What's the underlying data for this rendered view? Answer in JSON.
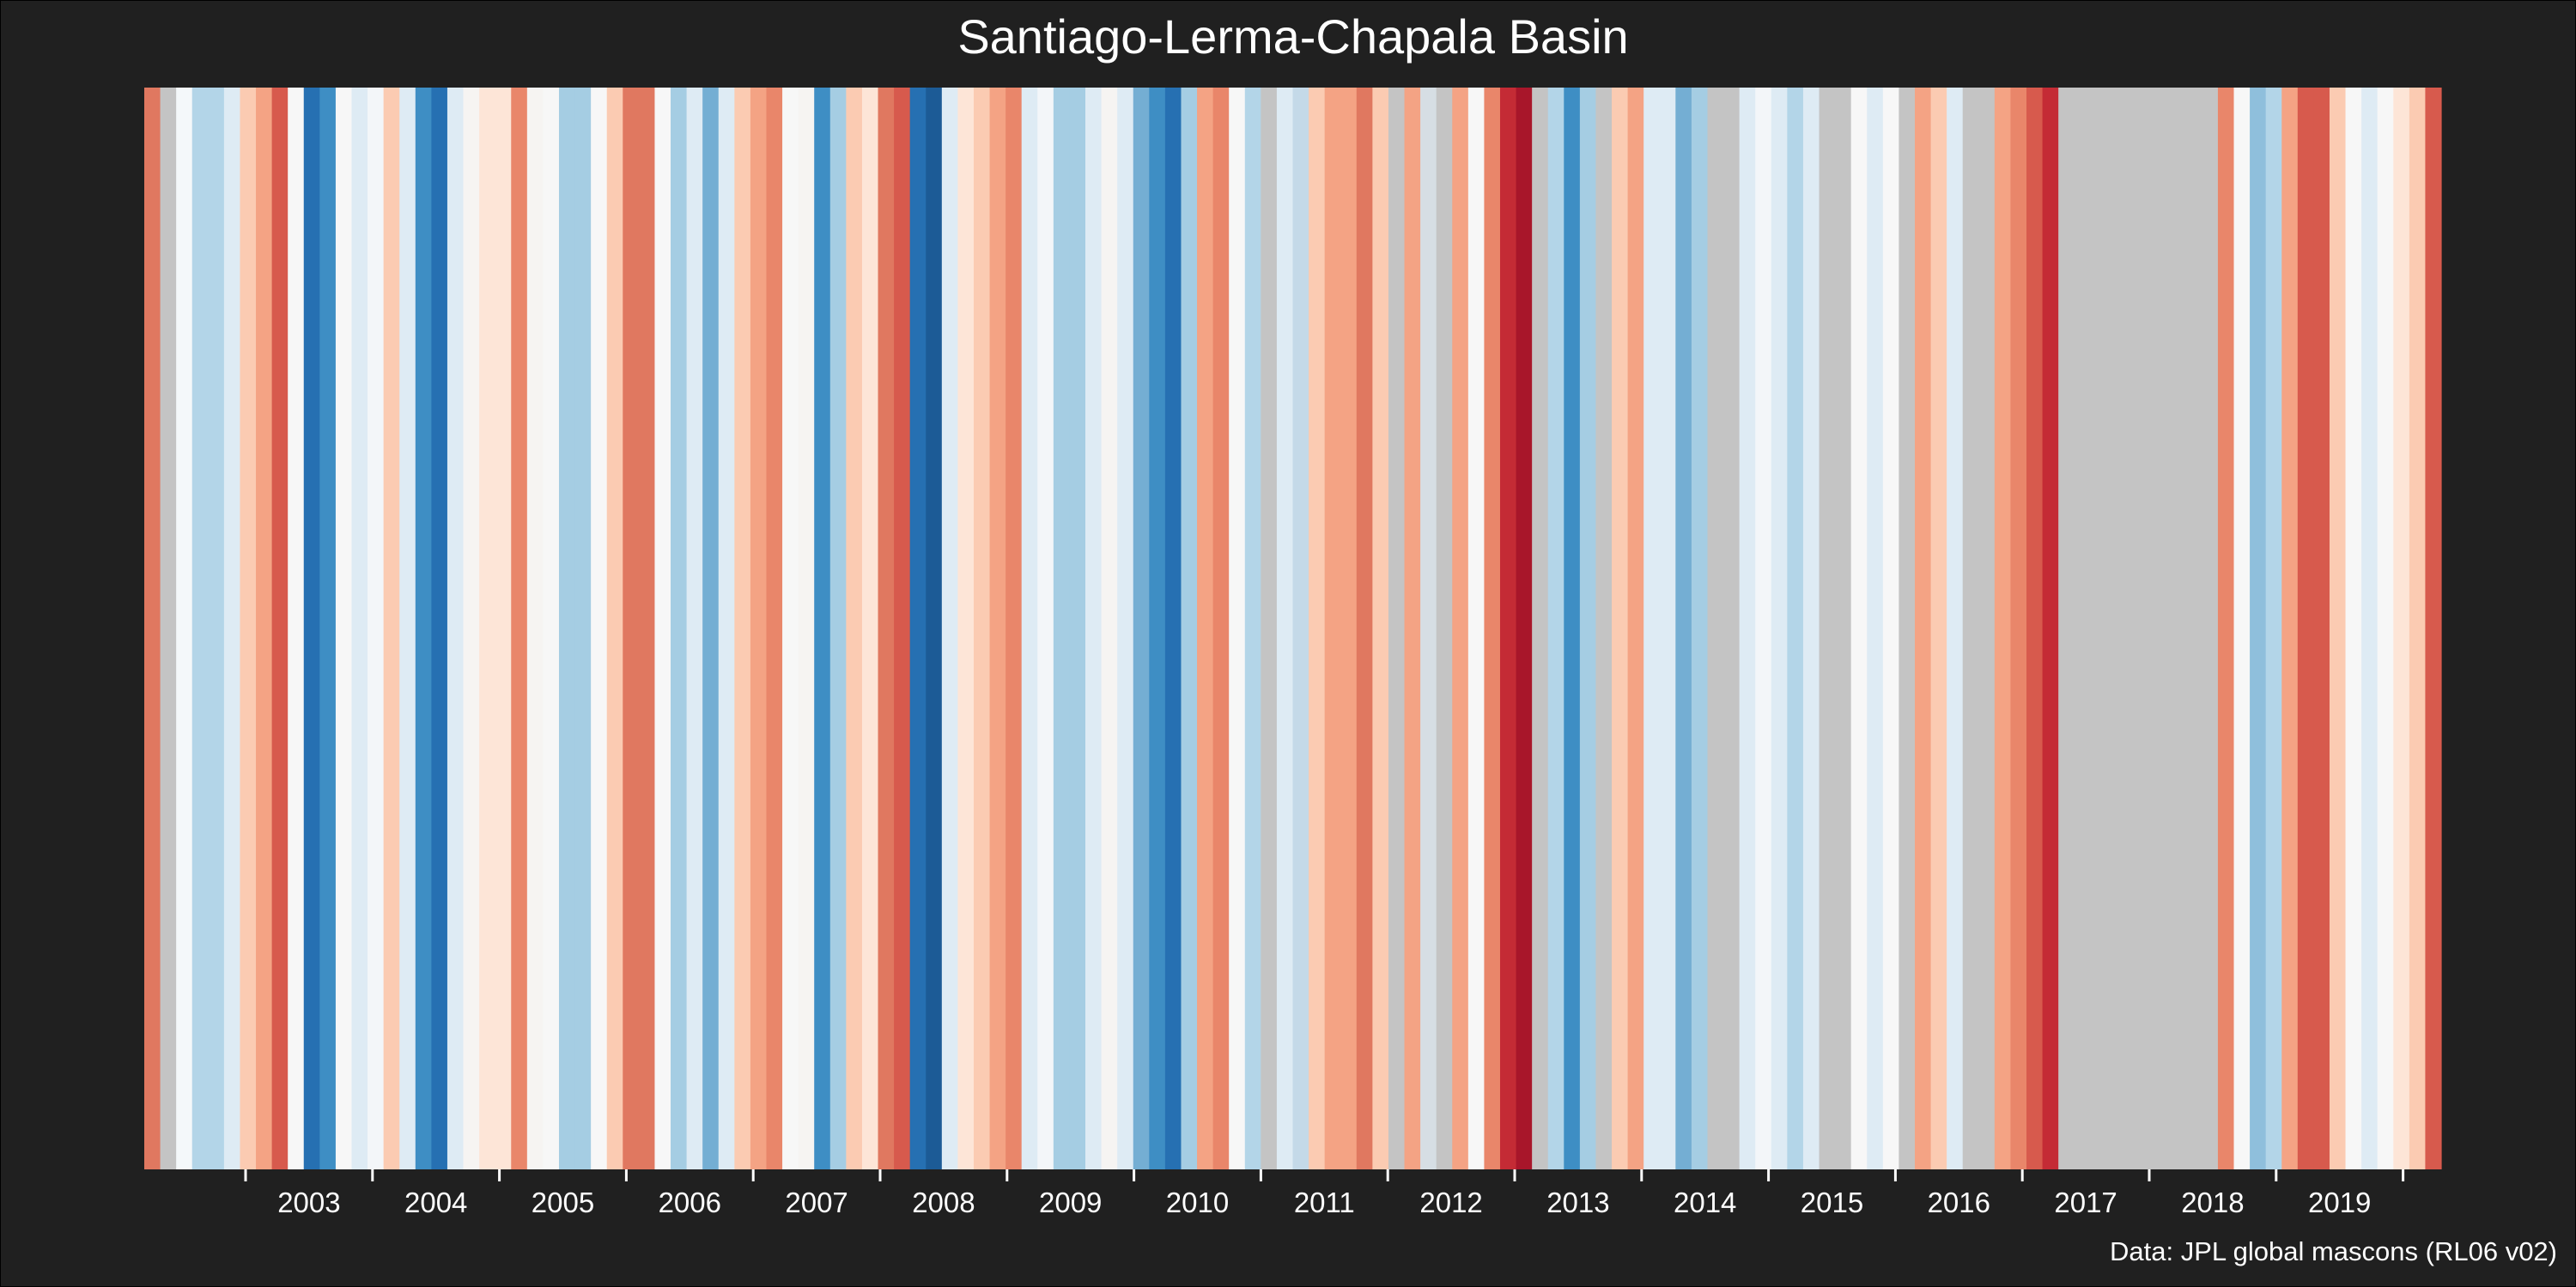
{
  "chart_data": {
    "type": "heatmap",
    "title": "Santiago-Lerma-Chapala Basin",
    "caption": "Data: JPL global mascons (RL06 v02)",
    "x_tick_labels": [
      "2003",
      "2004",
      "2005",
      "2006",
      "2007",
      "2008",
      "2009",
      "2010",
      "2011",
      "2012",
      "2013",
      "2014",
      "2015",
      "2016",
      "2017",
      "2018",
      "2019"
    ],
    "stripes": [
      "#e07860",
      "#c4c4c4",
      "#f4f8fa",
      "#b3d5e8",
      "#b3d5e8",
      "#deebf4",
      "#fbcbb2",
      "#f4a384",
      "#d75a4d",
      "#f7f7f7",
      "#2670b2",
      "#3e8ec4",
      "#f7f7f7",
      "#deebf4",
      "#f3f6f9",
      "#fbcbb2",
      "#deebf4",
      "#3e8ec4",
      "#2670b2",
      "#deebf4",
      "#f6f4f2",
      "#fde5d7",
      "#fde5d7",
      "#e9866a",
      "#f6f4f2",
      "#f7f7f7",
      "#a5cde3",
      "#a5cde3",
      "#f7f7f7",
      "#fbcbb2",
      "#e07860",
      "#e07860",
      "#f7f7f7",
      "#a5cde3",
      "#deebf4",
      "#74aed3",
      "#deebf4",
      "#fbcbb2",
      "#f4a384",
      "#e9866a",
      "#f7f7f7",
      "#f6f4f2",
      "#3e8ec4",
      "#a5cde3",
      "#fbcbb2",
      "#fde5d7",
      "#e07860",
      "#d75a4d",
      "#2670b2",
      "#1c5b96",
      "#deebf4",
      "#fde5d7",
      "#fbcbb2",
      "#f4a384",
      "#e9866a",
      "#deebf4",
      "#f3f6f9",
      "#a5cde3",
      "#a5cde3",
      "#deebf4",
      "#f6f4f2",
      "#deebf4",
      "#74aed3",
      "#3e8ec4",
      "#2670b2",
      "#a5cde3",
      "#f4a384",
      "#e9866a",
      "#f7f7f7",
      "#b3d5e8",
      "#c4c4c4",
      "#deebf4",
      "#c4d9e8",
      "#fbcbb2",
      "#f4a384",
      "#f4a384",
      "#e07860",
      "#fbcbb2",
      "#c4c4c4",
      "#f4a384",
      "#d6dee4",
      "#c4c4c4",
      "#f4a384",
      "#f7f7f7",
      "#e9866a",
      "#c42b35",
      "#a8162a",
      "#c4c4c4",
      "#b3d5e8",
      "#3e8ec4",
      "#a5cde3",
      "#c4c4c4",
      "#fbcbb2",
      "#f4a384",
      "#deebf4",
      "#deebf4",
      "#74aed3",
      "#a5cde3",
      "#c4c4c4",
      "#c4c4c4",
      "#deebf4",
      "#f3f6f9",
      "#deebf4",
      "#b3d5e8",
      "#deebf4",
      "#c4c4c4",
      "#c4c4c4",
      "#f7f7f7",
      "#deebf4",
      "#f7f7f7",
      "#c4c4c4",
      "#f4a384",
      "#fbcbb2",
      "#deebf4",
      "#c4c4c4",
      "#c4c4c4",
      "#f4a384",
      "#e9866a",
      "#d75a4d",
      "#c42b35",
      "#c4c4c4",
      "#c4c4c4",
      "#c4c4c4",
      "#c4c4c4",
      "#c4c4c4",
      "#c4c4c4",
      "#c4c4c4",
      "#c4c4c4",
      "#c4c4c4",
      "#c4c4c4",
      "#e9866a",
      "#f7f7f7",
      "#8fbfdc",
      "#b3d5e8",
      "#f4a384",
      "#d75a4d",
      "#d75a4d",
      "#fbcbb2",
      "#f7f7f7",
      "#deebf4",
      "#f7f7f7",
      "#fde5d7",
      "#fbcbb2",
      "#d75a4d"
    ]
  }
}
